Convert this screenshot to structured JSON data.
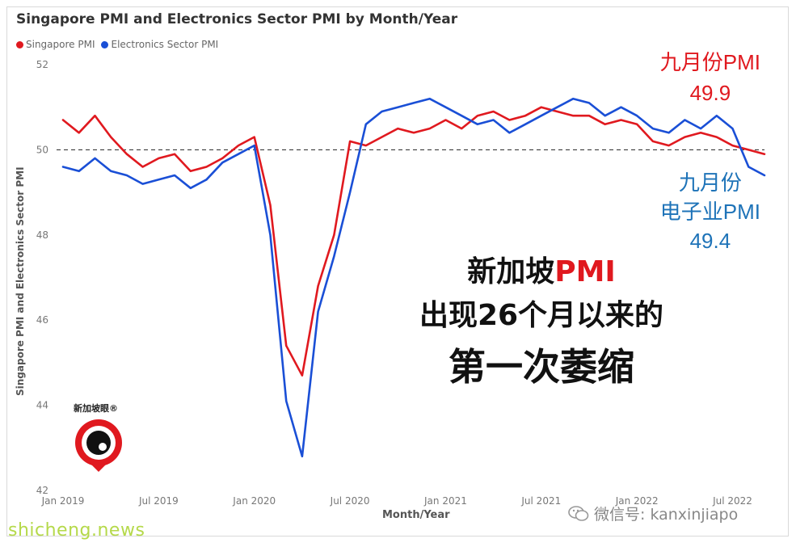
{
  "chart_data": {
    "type": "line",
    "title": "Singapore PMI and Electronics Sector PMI by Month/Year",
    "xlabel": "Month/Year",
    "ylabel": "Singapore PMI and Electronics Sector PMI",
    "ylim": [
      42,
      52
    ],
    "y_ticks": [
      "42",
      "44",
      "46",
      "48",
      "50",
      "52"
    ],
    "x_tick_labels": [
      {
        "month_index": 0,
        "label": "Jan 2019"
      },
      {
        "month_index": 6,
        "label": "Jul 2019"
      },
      {
        "month_index": 12,
        "label": "Jan 2020"
      },
      {
        "month_index": 18,
        "label": "Jul 2020"
      },
      {
        "month_index": 24,
        "label": "Jan 2021"
      },
      {
        "month_index": 30,
        "label": "Jul 2021"
      },
      {
        "month_index": 36,
        "label": "Jan 2022"
      },
      {
        "month_index": 42,
        "label": "Jul 2022"
      }
    ],
    "x": [
      "Jan 2019",
      "Feb 2019",
      "Mar 2019",
      "Apr 2019",
      "May 2019",
      "Jun 2019",
      "Jul 2019",
      "Aug 2019",
      "Sep 2019",
      "Oct 2019",
      "Nov 2019",
      "Dec 2019",
      "Jan 2020",
      "Feb 2020",
      "Mar 2020",
      "Apr 2020",
      "May 2020",
      "Jun 2020",
      "Jul 2020",
      "Aug 2020",
      "Sep 2020",
      "Oct 2020",
      "Nov 2020",
      "Dec 2020",
      "Jan 2021",
      "Feb 2021",
      "Mar 2021",
      "Apr 2021",
      "May 2021",
      "Jun 2021",
      "Jul 2021",
      "Aug 2021",
      "Sep 2021",
      "Oct 2021",
      "Nov 2021",
      "Dec 2021",
      "Jan 2022",
      "Feb 2022",
      "Mar 2022",
      "Apr 2022",
      "May 2022",
      "Jun 2022",
      "Jul 2022",
      "Aug 2022",
      "Sep 2022"
    ],
    "reference_line": 50,
    "series": [
      {
        "name": "Singapore PMI",
        "color": "#e0191f",
        "values": [
          50.7,
          50.4,
          50.8,
          50.3,
          49.9,
          49.6,
          49.8,
          49.9,
          49.5,
          49.6,
          49.8,
          50.1,
          50.3,
          48.7,
          45.4,
          44.7,
          46.8,
          48.0,
          50.2,
          50.1,
          50.3,
          50.5,
          50.4,
          50.5,
          50.7,
          50.5,
          50.8,
          50.9,
          50.7,
          50.8,
          51.0,
          50.9,
          50.8,
          50.8,
          50.6,
          50.7,
          50.6,
          50.2,
          50.1,
          50.3,
          50.4,
          50.3,
          50.1,
          50.0,
          49.9
        ]
      },
      {
        "name": "Electronics Sector PMI",
        "color": "#1a4fd6",
        "values": [
          49.6,
          49.5,
          49.8,
          49.5,
          49.4,
          49.2,
          49.3,
          49.4,
          49.1,
          49.3,
          49.7,
          49.9,
          50.1,
          48.0,
          44.1,
          42.8,
          46.2,
          47.5,
          49.0,
          50.6,
          50.9,
          51.0,
          51.1,
          51.2,
          51.0,
          50.8,
          50.6,
          50.7,
          50.4,
          50.6,
          50.8,
          51.0,
          51.2,
          51.1,
          50.8,
          51.0,
          50.8,
          50.5,
          50.4,
          50.7,
          50.5,
          50.8,
          50.5,
          49.6,
          49.4
        ]
      }
    ]
  },
  "legend": {
    "items": [
      {
        "label": "Singapore PMI",
        "color": "#e0191f"
      },
      {
        "label": "Electronics Sector PMI",
        "color": "#1a4fd6"
      }
    ]
  },
  "annotations": {
    "red_line1": "九月份PMI",
    "red_line2": "49.9",
    "blue_line1": "九月份",
    "blue_line2": "电子业PMI",
    "blue_line3": "49.4"
  },
  "headline": {
    "line1_prefix": "新加坡",
    "line1_pmi": "PMI",
    "line2": "出现26个月以来的",
    "line3": "第一次萎缩"
  },
  "logo": {
    "text": "新加坡眼®",
    "icon": "camera-eye-icon"
  },
  "wechat": {
    "icon": "wechat-icon",
    "text": "微信号: kanxinjiapo"
  },
  "watermark": "shicheng.news"
}
